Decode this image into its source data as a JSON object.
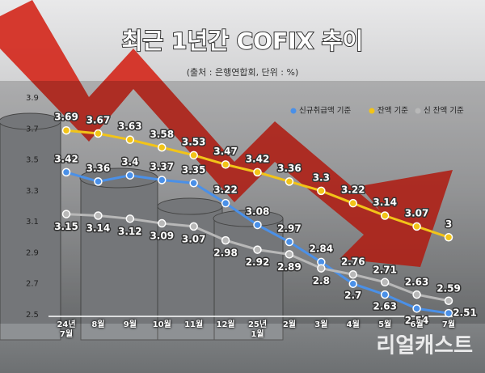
{
  "chart_data": {
    "type": "line",
    "title": "최근 1년간 COFIX 추이",
    "subtitle": "(출처 : 은행연합회, 단위 : %)",
    "watermark": "리얼캐스트",
    "categories": [
      "24년\n7월",
      "8월",
      "9월",
      "10월",
      "11월",
      "12월",
      "25년\n1월",
      "2월",
      "3월",
      "4월",
      "5월",
      "6월",
      "7월"
    ],
    "series": [
      {
        "name": "신규취급액 기준",
        "color": "#4a90e8",
        "values": [
          3.42,
          3.36,
          3.4,
          3.37,
          3.35,
          3.22,
          3.08,
          2.97,
          2.84,
          2.7,
          2.63,
          2.54,
          2.51
        ]
      },
      {
        "name": "잔액 기준",
        "color": "#f2c418",
        "values": [
          3.69,
          3.67,
          3.63,
          3.58,
          3.53,
          3.47,
          3.42,
          3.36,
          3.3,
          3.22,
          3.14,
          3.07,
          3
        ]
      },
      {
        "name": "신 잔액 기준",
        "color": "#b8b8b8",
        "values": [
          3.15,
          3.14,
          3.12,
          3.09,
          3.07,
          2.98,
          2.92,
          2.89,
          2.8,
          2.76,
          2.71,
          2.63,
          2.59
        ]
      }
    ],
    "ylim": [
      2.5,
      3.9
    ],
    "yticks": [
      2.5,
      2.7,
      2.9,
      3.1,
      3.3,
      3.5,
      3.7,
      3.9
    ]
  }
}
